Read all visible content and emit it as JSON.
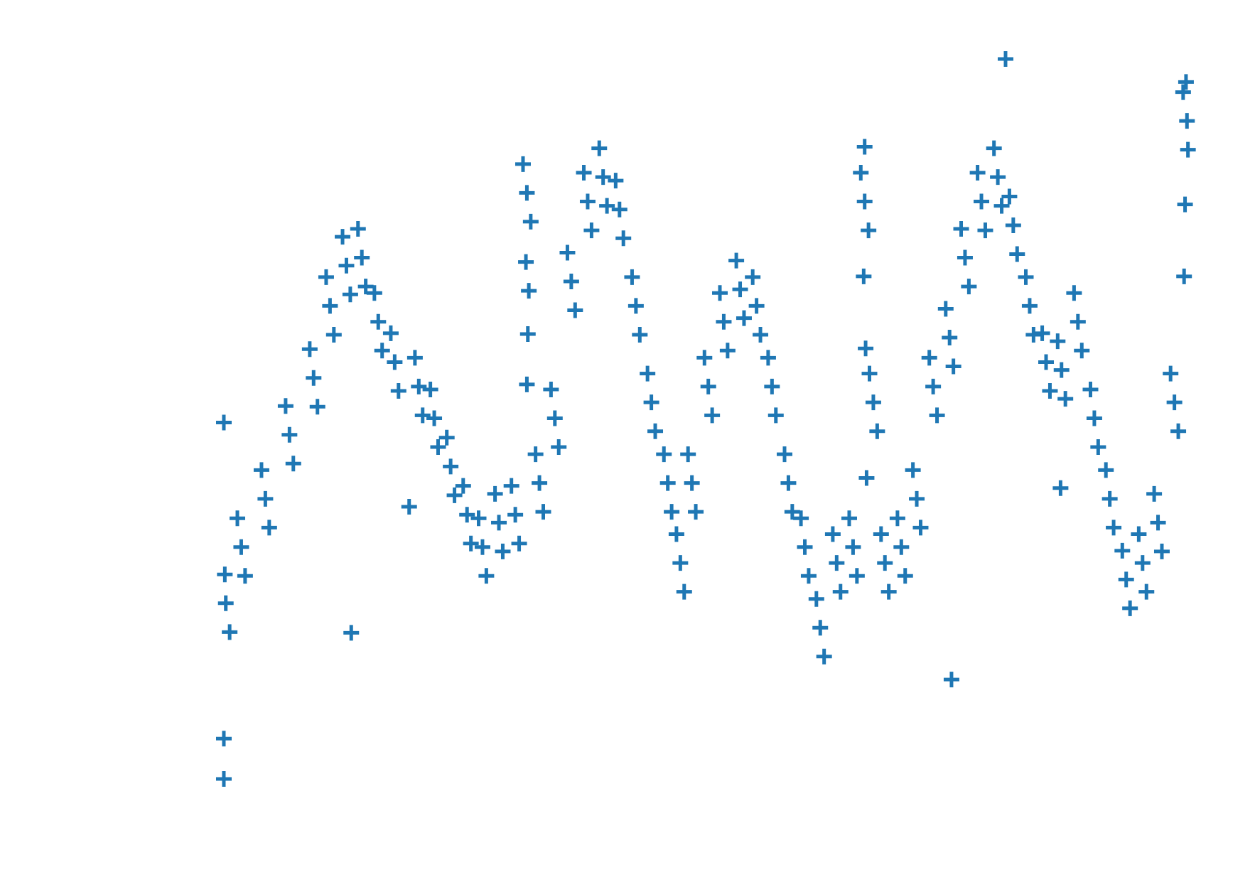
{
  "chart_data": {
    "type": "scatter",
    "color": "#1f77b4",
    "marker": "plus",
    "xlim": [
      0,
      100
    ],
    "ylim": [
      0,
      100
    ],
    "x": [
      0.2,
      0.1,
      0.6,
      1.8,
      1.4,
      2.2,
      4.3,
      3.9,
      4.7,
      6.8,
      6.4,
      7.2,
      9.3,
      8.9,
      9.7,
      11,
      10.6,
      11.4,
      12.7,
      12.3,
      13.1,
      14.3,
      13.9,
      14.7,
      16,
      15.6,
      16.4,
      17.7,
      17.3,
      18.1,
      20.2,
      19.8,
      20.6,
      21.8,
      21.4,
      22.2,
      23.5,
      23.1,
      23.9,
      25.2,
      24.8,
      25.6,
      26.8,
      26.4,
      27.2,
      28.5,
      28.1,
      28.9,
      30.2,
      29.8,
      30.6,
      31.4,
      31.0,
      31.8,
      32.7,
      32.3,
      33.1,
      34.3,
      33.9,
      34.7,
      36,
      35.6,
      36.4,
      37.7,
      37.3,
      38.1,
      39.3,
      38.9,
      39.7,
      41,
      40.6,
      41.4,
      42.7,
      42.3,
      43.1,
      44.3,
      43.9,
      44.7,
      46,
      45.6,
      46.4,
      47.3,
      46.9,
      47.7,
      48.5,
      48.1,
      48.9,
      50.2,
      49.8,
      50.6,
      51.8,
      51.4,
      52.2,
      53.5,
      53.1,
      53.9,
      55.2,
      54.8,
      55.6,
      56.8,
      56.4,
      57.2,
      58.5,
      58.1,
      58.9,
      60.2,
      59.8,
      60.6,
      61.8,
      61.4,
      62.2,
      63.5,
      63.1,
      63.9,
      65.2,
      64.8,
      65.6,
      66.4,
      66.0,
      66.8,
      67.3,
      66.9,
      67.7,
      68.5,
      68.1,
      68.9,
      70.2,
      69.8,
      70.6,
      71.8,
      71.4,
      72.2,
      73.5,
      73.1,
      73.9,
      75.2,
      74.8,
      75.6,
      76.8,
      76.4,
      77.2,
      78.5,
      78.1,
      78.9,
      80.2,
      79.8,
      80.6,
      81.8,
      81.4,
      82.2,
      83.5,
      83.1,
      83.9,
      85.2,
      84.8,
      85.6,
      86.8,
      86.4,
      87.2,
      88.5,
      88.1,
      88.9,
      90.2,
      89.8,
      90.6,
      91.8,
      91.4,
      92.2,
      93.5,
      93.1,
      93.9,
      95.2,
      94.8,
      95.6,
      96.8,
      96.4,
      97.2,
      98.5,
      98.1,
      98.9,
      99.8,
      99.4,
      99.9,
      31.3,
      31.5,
      31.4,
      31.6,
      66.3,
      66.5,
      66.4,
      66.6,
      99.6,
      99.7,
      99.5,
      0,
      0,
      0,
      75.4,
      86.7,
      19.2,
      81,
      13.2
    ],
    "values": [
      24.6,
      28.6,
      20.6,
      32.4,
      36.4,
      28.4,
      39.1,
      43.1,
      35.1,
      48,
      52,
      44,
      55.9,
      59.9,
      51.9,
      65.9,
      69.9,
      61.9,
      71.5,
      75.5,
      67.5,
      72.6,
      76.6,
      68.6,
      63.7,
      67.7,
      59.7,
      58.1,
      62.1,
      54.1,
      54.7,
      58.7,
      50.7,
      50.3,
      54.3,
      46.3,
      43.6,
      47.6,
      39.6,
      36.9,
      40.9,
      32.9,
      32.4,
      36.4,
      28.4,
      35.8,
      39.8,
      31.8,
      36.9,
      40.9,
      32.9,
      81.6,
      85.6,
      77.6,
      41.3,
      45.3,
      37.3,
      50.3,
      54.3,
      46.3,
      69.3,
      73.3,
      65.3,
      80.4,
      84.4,
      76.4,
      83.8,
      87.8,
      79.8,
      79.3,
      83.3,
      75.3,
      65.9,
      69.9,
      61.9,
      52.5,
      56.5,
      48.5,
      41.3,
      45.3,
      37.3,
      30.2,
      34.2,
      26.2,
      41.3,
      45.3,
      37.3,
      54.7,
      58.7,
      50.7,
      63.7,
      67.7,
      59.7,
      68.2,
      72.2,
      64.2,
      65.9,
      69.9,
      61.9,
      54.7,
      58.7,
      50.7,
      41.3,
      45.3,
      37.3,
      32.4,
      36.4,
      28.4,
      21.2,
      25.2,
      17.2,
      30.2,
      34.2,
      26.2,
      32.4,
      36.4,
      28.4,
      80.4,
      84.4,
      76.4,
      52.5,
      56.5,
      48.5,
      30.2,
      34.2,
      26.2,
      32.4,
      36.4,
      28.4,
      39.1,
      43.1,
      35.1,
      54.7,
      58.7,
      50.7,
      61.5,
      65.5,
      57.5,
      72.6,
      76.6,
      68.6,
      80.4,
      84.4,
      76.4,
      83.8,
      87.8,
      79.8,
      77.1,
      81.1,
      73.1,
      65.9,
      69.9,
      61.9,
      58.1,
      62.1,
      54.1,
      57,
      61,
      53,
      63.7,
      67.7,
      59.7,
      50.3,
      54.3,
      46.3,
      39.1,
      43.1,
      35.1,
      27.9,
      31.9,
      23.9,
      30.2,
      34.2,
      26.2,
      35.8,
      39.8,
      31.8,
      52.5,
      56.5,
      48.5,
      91.6,
      95.6,
      87.6,
      72,
      62,
      55,
      68,
      70,
      60,
      88,
      42,
      80,
      97,
      70,
      49.7,
      5.8,
      0.2,
      14,
      40.6,
      38,
      100.2,
      20.5
    ]
  }
}
